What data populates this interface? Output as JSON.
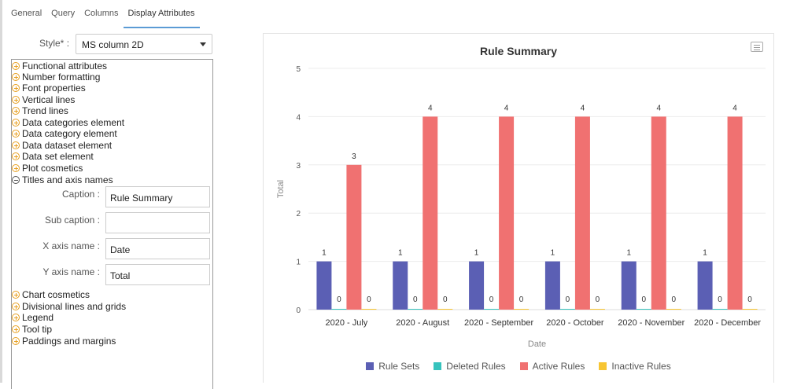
{
  "tabs": [
    "General",
    "Query",
    "Columns",
    "Display Attributes"
  ],
  "style": {
    "label": "Style*",
    "colon": ":",
    "value": "MS column 2D"
  },
  "tree_top": [
    "Functional attributes",
    "Number formatting",
    "Font properties",
    "Vertical lines",
    "Trend lines",
    "Data categories element",
    "Data category element",
    "Data dataset element",
    "Data set element",
    "Plot cosmetics"
  ],
  "tree_expanded": "Titles and axis names",
  "fields": [
    {
      "label": "Caption :",
      "value": "Rule Summary"
    },
    {
      "label": "Sub caption :",
      "value": ""
    },
    {
      "label": "X axis name :",
      "value": "Date"
    },
    {
      "label": "Y axis name :",
      "value": "Total"
    }
  ],
  "tree_bottom": [
    "Chart cosmetics",
    "Divisional lines and grids",
    "Legend",
    "Tool tip",
    "Paddings and margins"
  ],
  "icons": {
    "collapsed": "plus-circle-icon",
    "expanded": "minus-circle-icon",
    "menu": "menu-icon",
    "dropdown": "chevron-down-icon"
  },
  "colors": {
    "accent": "#5b9bd5",
    "expand": "#e8a020"
  },
  "chart_data": {
    "type": "bar",
    "title": "Rule Summary",
    "xlabel": "Date",
    "ylabel": "Total",
    "ylim": [
      0,
      5
    ],
    "yticks": [
      "0",
      "1",
      "2",
      "3",
      "4",
      "5"
    ],
    "categories": [
      "2020 - July",
      "2020 - August",
      "2020 - September",
      "2020 - October",
      "2020 - November",
      "2020 - December"
    ],
    "series": [
      {
        "name": "Rule Sets",
        "color": "#5b5fb4",
        "values": [
          1,
          1,
          1,
          1,
          1,
          1
        ]
      },
      {
        "name": "Deleted Rules",
        "color": "#36c3bd",
        "values": [
          0,
          0,
          0,
          0,
          0,
          0
        ]
      },
      {
        "name": "Active Rules",
        "color": "#f07171",
        "values": [
          3,
          4,
          4,
          4,
          4,
          4
        ]
      },
      {
        "name": "Inactive Rules",
        "color": "#f7c533",
        "values": [
          0,
          0,
          0,
          0,
          0,
          0
        ]
      }
    ]
  }
}
